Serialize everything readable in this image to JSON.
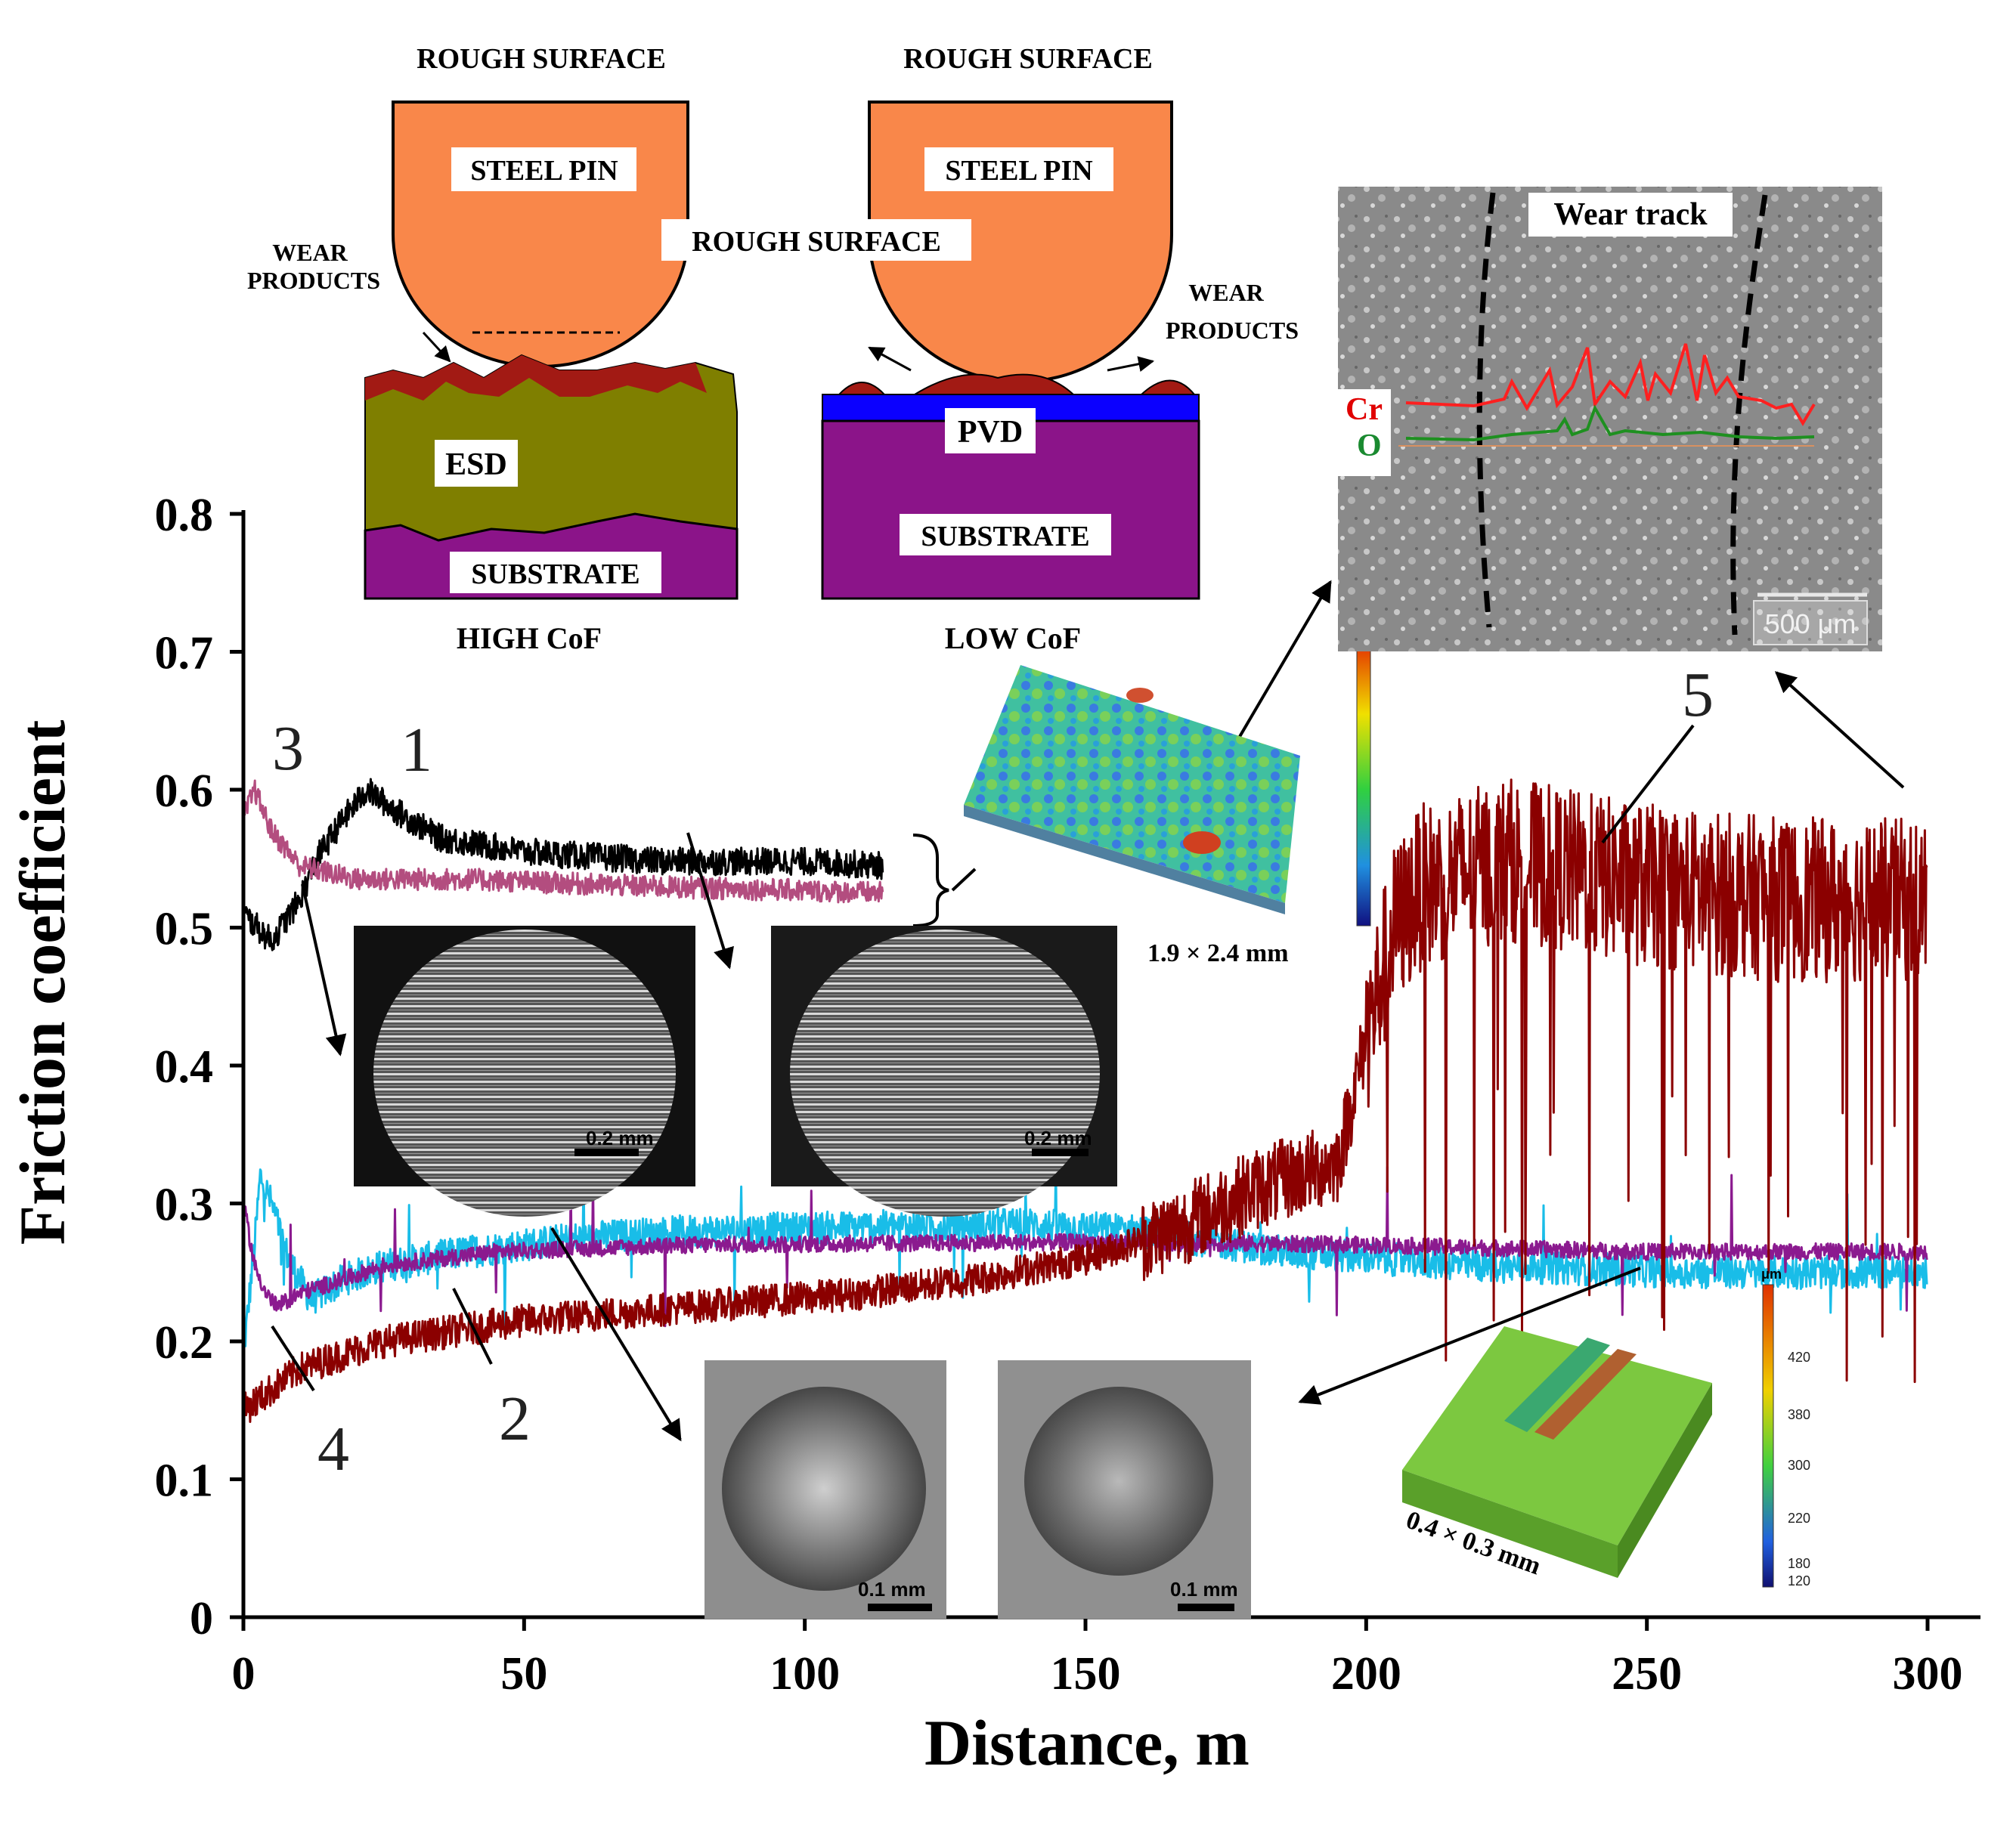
{
  "chart_data": {
    "type": "line",
    "title": "",
    "xlabel": "Distance, m",
    "ylabel": "Friction coefficient",
    "xlim": [
      0,
      300
    ],
    "ylim": [
      0,
      0.8
    ],
    "xticks": [
      "0",
      "50",
      "100",
      "150",
      "200",
      "250",
      "300"
    ],
    "yticks": [
      "0",
      "0.1",
      "0.2",
      "0.3",
      "0.4",
      "0.5",
      "0.6",
      "0.7",
      "0.8"
    ],
    "series": [
      {
        "name": "1",
        "color": "#000000",
        "noise": 0.01,
        "points": [
          [
            0,
            0.51
          ],
          [
            5,
            0.49
          ],
          [
            10,
            0.52
          ],
          [
            13,
            0.55
          ],
          [
            18,
            0.58
          ],
          [
            22,
            0.6
          ],
          [
            27,
            0.585
          ],
          [
            35,
            0.565
          ],
          [
            50,
            0.555
          ],
          [
            75,
            0.548
          ],
          [
            100,
            0.548
          ],
          [
            114,
            0.545
          ]
        ]
      },
      {
        "name": "2",
        "color": "#19bde8",
        "noise": 0.012,
        "points": [
          [
            0,
            0.19
          ],
          [
            2,
            0.27
          ],
          [
            3,
            0.32
          ],
          [
            5,
            0.3
          ],
          [
            8,
            0.26
          ],
          [
            12,
            0.23
          ],
          [
            18,
            0.245
          ],
          [
            25,
            0.255
          ],
          [
            40,
            0.265
          ],
          [
            60,
            0.275
          ],
          [
            80,
            0.28
          ],
          [
            110,
            0.283
          ],
          [
            140,
            0.285
          ],
          [
            160,
            0.28
          ],
          [
            185,
            0.265
          ],
          [
            220,
            0.255
          ],
          [
            260,
            0.25
          ],
          [
            300,
            0.25
          ]
        ]
      },
      {
        "name": "3",
        "color": "#b34d7f",
        "noise": 0.008,
        "points": [
          [
            0,
            0.58
          ],
          [
            2,
            0.6
          ],
          [
            5,
            0.57
          ],
          [
            10,
            0.545
          ],
          [
            20,
            0.535
          ],
          [
            40,
            0.535
          ],
          [
            70,
            0.53
          ],
          [
            100,
            0.527
          ],
          [
            114,
            0.525
          ]
        ]
      },
      {
        "name": "4",
        "color": "#8b1a8f",
        "noise": 0.006,
        "points": [
          [
            0,
            0.3
          ],
          [
            2,
            0.255
          ],
          [
            4,
            0.235
          ],
          [
            6,
            0.225
          ],
          [
            10,
            0.235
          ],
          [
            18,
            0.245
          ],
          [
            25,
            0.255
          ],
          [
            45,
            0.265
          ],
          [
            80,
            0.27
          ],
          [
            150,
            0.272
          ],
          [
            200,
            0.27
          ],
          [
            250,
            0.265
          ],
          [
            300,
            0.265
          ]
        ]
      },
      {
        "name": "5",
        "color": "#8b0000",
        "noise": 0.012,
        "points": [
          [
            0,
            0.15
          ],
          [
            10,
            0.18
          ],
          [
            25,
            0.2
          ],
          [
            50,
            0.215
          ],
          [
            80,
            0.225
          ],
          [
            110,
            0.235
          ],
          [
            130,
            0.245
          ],
          [
            150,
            0.26
          ],
          [
            165,
            0.28
          ],
          [
            180,
            0.31
          ],
          [
            195,
            0.33
          ],
          [
            200,
            0.42
          ],
          [
            205,
            0.5
          ],
          [
            210,
            0.53
          ],
          [
            225,
            0.55
          ],
          [
            250,
            0.53
          ],
          [
            275,
            0.52
          ],
          [
            300,
            0.52
          ]
        ]
      }
    ],
    "curve_labels": [
      "1",
      "2",
      "3",
      "4",
      "5"
    ],
    "annotations": {
      "optical_scale_0_2": "0.2 mm",
      "optical_scale_0_1": "0.1 mm",
      "profile_size_1": "1.9 × 2.4 mm",
      "profile_size_2": "0.4 × 0.3 mm",
      "um_unit": "μm",
      "colorbar_ticks": [
        "420",
        "380",
        "300",
        "220",
        "180",
        "120"
      ]
    },
    "wear_track": {
      "title": "Wear track",
      "scale": "500 μm",
      "cr_label": "Cr",
      "o_label": "O"
    },
    "schematics": {
      "left": {
        "top_label": "ROUGH SURFACE",
        "pin_label": "STEEL PIN",
        "wear_label_1": "WEAR",
        "wear_label_2": "PRODUCTS",
        "coating_label": "ESD",
        "substrate_label": "SUBSTRATE",
        "caption": "HIGH CoF"
      },
      "right": {
        "top_label": "ROUGH SURFACE",
        "pin_label": "STEEL PIN",
        "middle_label": "ROUGH SURFACE",
        "wear_label_1": "WEAR",
        "wear_label_2": "PRODUCTS",
        "coating_label": "PVD",
        "substrate_label": "SUBSTRATE",
        "caption": "LOW CoF"
      }
    }
  }
}
